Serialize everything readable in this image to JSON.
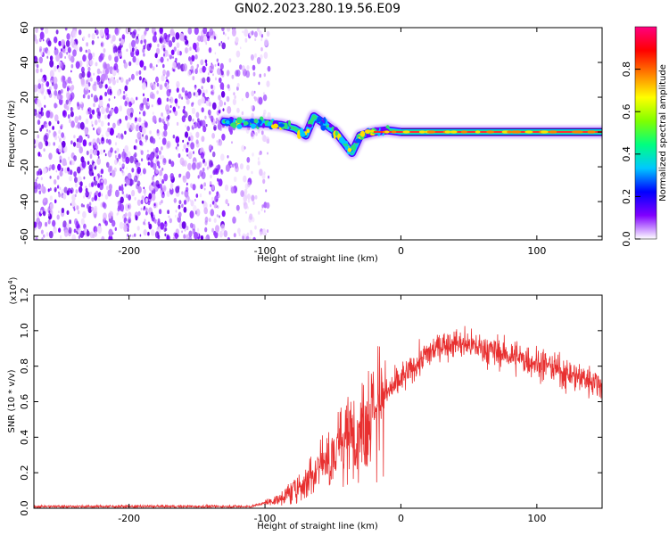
{
  "chart_data": [
    {
      "type": "heatmap",
      "title": "GN02.2023.280.19.56.E09",
      "xlabel": "Height of straight line (km)",
      "ylabel": "Frequency (Hz)",
      "xlim": [
        -270,
        148
      ],
      "ylim": [
        -62,
        60
      ],
      "x_ticks": [
        -200,
        -100,
        0,
        100
      ],
      "y_ticks": [
        60,
        40,
        20,
        0,
        -20,
        -40,
        -60
      ],
      "grid": false,
      "noise_region": {
        "x": [
          -270,
          -97
        ],
        "y": [
          -62,
          60
        ],
        "dense_until": -130
      },
      "signal_track": [
        {
          "x": -130,
          "f": 6
        },
        {
          "x": -115,
          "f": 5
        },
        {
          "x": -100,
          "f": 5
        },
        {
          "x": -88,
          "f": 4
        },
        {
          "x": -78,
          "f": 2
        },
        {
          "x": -70,
          "f": -2
        },
        {
          "x": -64,
          "f": 9
        },
        {
          "x": -55,
          "f": 4
        },
        {
          "x": -48,
          "f": 0
        },
        {
          "x": -42,
          "f": -6
        },
        {
          "x": -36,
          "f": -12
        },
        {
          "x": -30,
          "f": -2
        },
        {
          "x": -20,
          "f": 0
        },
        {
          "x": -10,
          "f": 1
        },
        {
          "x": 0,
          "f": 0
        },
        {
          "x": 50,
          "f": 0
        },
        {
          "x": 100,
          "f": 0
        },
        {
          "x": 148,
          "f": 0
        }
      ],
      "colorbar": {
        "label": "Normalized spectral amplitude",
        "range": [
          0,
          1
        ],
        "ticks": [
          "0.0",
          "0.2",
          "0.4",
          "0.6",
          "0.8"
        ],
        "colors": [
          "#ffffff",
          "#8000ff",
          "#0000ff",
          "#00c8ff",
          "#00ff80",
          "#80ff00",
          "#ffff00",
          "#ff8000",
          "#ff0000",
          "#ff0080"
        ]
      }
    },
    {
      "type": "line",
      "title": "",
      "xlabel": "Height of straight line (km)",
      "ylabel": "SNR (10 * v/v)",
      "scale_label": "(x10",
      "scale_exponent": "4",
      "scale_suffix": ")",
      "xlim": [
        -270,
        148
      ],
      "ylim": [
        0,
        1.2
      ],
      "x_ticks": [
        -200,
        -100,
        0,
        100
      ],
      "y_ticks": [
        "0.0",
        "0.2",
        "0.4",
        "0.6",
        "0.8",
        "1.0",
        "1.2"
      ],
      "color": "#e83030",
      "grid": false,
      "series": [
        {
          "x": [
            -270,
            -250,
            -200,
            -150,
            -110,
            -100,
            -90,
            -80,
            -70,
            -60,
            -50,
            -40,
            -30,
            -20,
            -10,
            0,
            10,
            20,
            30,
            40,
            50,
            60,
            70,
            80,
            90,
            100,
            110,
            120,
            130,
            140,
            148
          ],
          "values": [
            0.01,
            0.01,
            0.01,
            0.01,
            0.01,
            0.03,
            0.05,
            0.1,
            0.15,
            0.25,
            0.3,
            0.4,
            0.45,
            0.55,
            0.65,
            0.72,
            0.8,
            0.87,
            0.92,
            0.93,
            0.92,
            0.9,
            0.88,
            0.86,
            0.84,
            0.82,
            0.8,
            0.76,
            0.74,
            0.72,
            0.7
          ]
        }
      ]
    }
  ]
}
